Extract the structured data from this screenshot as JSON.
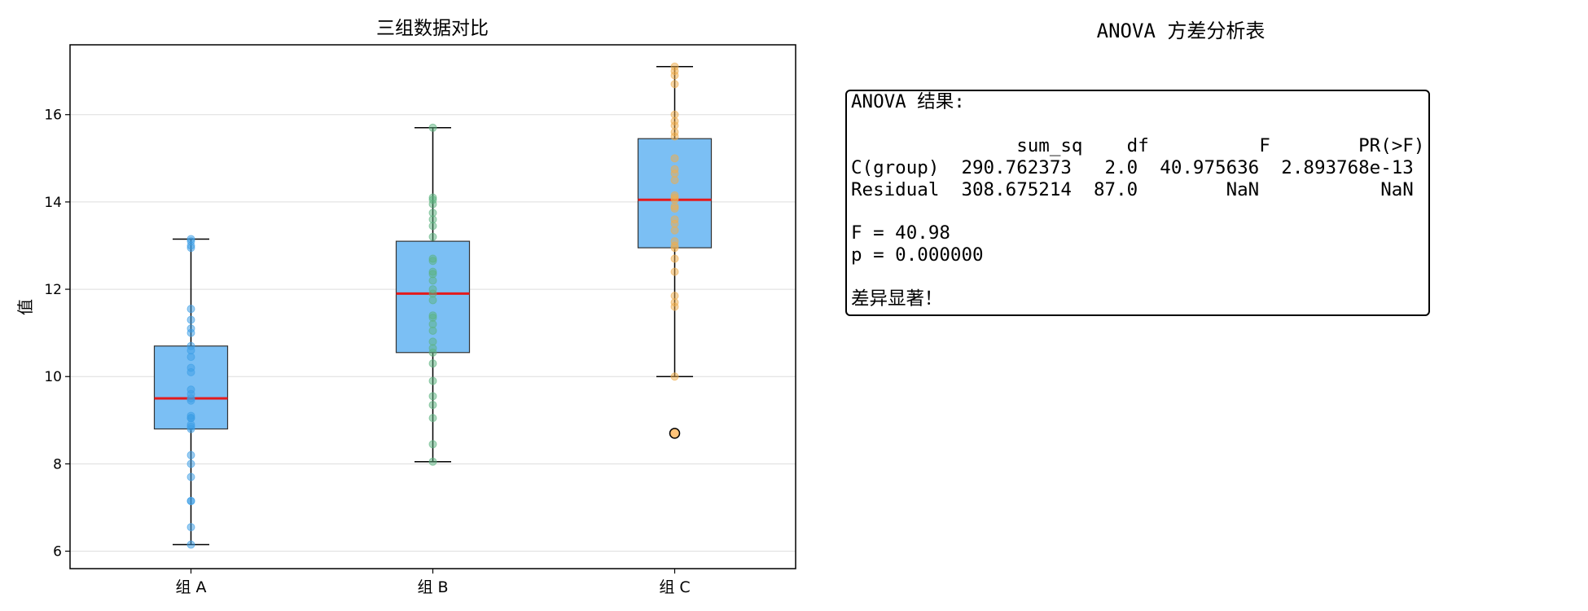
{
  "chart_data": {
    "type": "box",
    "title": "三组数据对比",
    "xlabel": "",
    "ylabel": "值",
    "categories": [
      "组 A",
      "组 B",
      "组 C"
    ],
    "ylim": [
      5.6,
      17.6
    ],
    "yticks": [
      6,
      8,
      10,
      12,
      14,
      16
    ],
    "grid": "y",
    "box_color": "#7bbff4",
    "median_color": "#e41a1c",
    "point_colors": [
      "#3c9ee6",
      "#5bb37f",
      "#f0ae4c"
    ],
    "outlier_color": "#ffc47a",
    "groups": [
      {
        "name": "组 A",
        "whislo": 6.15,
        "q1": 8.8,
        "med": 9.5,
        "q3": 10.7,
        "whishi": 13.15,
        "fliers": [],
        "points": [
          6.15,
          6.55,
          7.15,
          7.15,
          7.7,
          8.0,
          8.2,
          8.8,
          8.85,
          8.9,
          9.05,
          9.05,
          9.1,
          9.45,
          9.5,
          9.6,
          9.7,
          10.1,
          10.2,
          10.45,
          10.6,
          10.7,
          11.0,
          11.1,
          11.3,
          11.55,
          12.95,
          13.0,
          13.1,
          13.15
        ]
      },
      {
        "name": "组 B",
        "whislo": 8.05,
        "q1": 10.55,
        "med": 11.9,
        "q3": 13.1,
        "whishi": 15.7,
        "fliers": [],
        "points": [
          8.05,
          8.45,
          9.05,
          9.35,
          9.55,
          9.9,
          10.3,
          10.55,
          10.65,
          10.8,
          11.05,
          11.2,
          11.35,
          11.4,
          11.75,
          11.9,
          12.0,
          12.2,
          12.35,
          12.4,
          12.65,
          12.7,
          13.2,
          13.45,
          13.6,
          13.75,
          13.95,
          14.05,
          14.1,
          15.7
        ]
      },
      {
        "name": "组 C",
        "whislo": 10.0,
        "q1": 12.95,
        "med": 14.05,
        "q3": 15.45,
        "whishi": 17.1,
        "fliers": [
          8.7
        ],
        "points": [
          10.0,
          11.6,
          11.7,
          11.85,
          12.4,
          12.7,
          12.95,
          13.0,
          13.1,
          13.35,
          13.5,
          13.6,
          13.85,
          13.9,
          14.05,
          14.1,
          14.15,
          14.5,
          14.65,
          14.75,
          15.0,
          15.5,
          15.6,
          15.75,
          15.85,
          16.0,
          16.7,
          16.9,
          17.0,
          17.1
        ]
      }
    ]
  },
  "anova": {
    "panel_title": "ANOVA 方差分析表",
    "text": "ANOVA 结果:\n\n               sum_sq    df          F        PR(>F)\nC(group)  290.762373   2.0  40.975636  2.893768e-13\nResidual  308.675214  87.0        NaN           NaN\n\nF = 40.98\np = 0.000000\n\n差异显著！"
  }
}
